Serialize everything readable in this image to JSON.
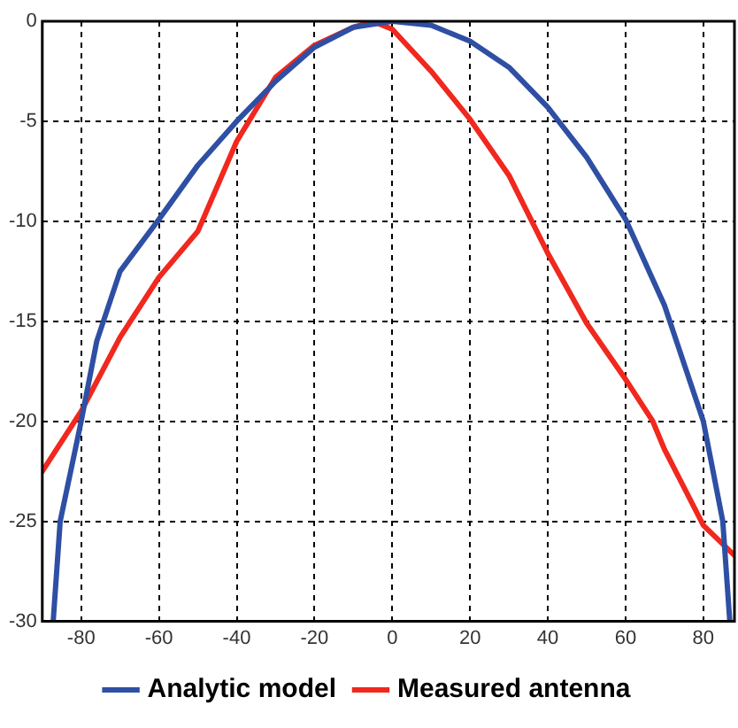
{
  "chart_data": {
    "type": "line",
    "xlim": [
      -90,
      88
    ],
    "ylim": [
      -30,
      0
    ],
    "xticks": [
      -80,
      -60,
      -40,
      -20,
      0,
      20,
      40,
      60,
      80
    ],
    "yticks": [
      -30,
      -25,
      -20,
      -15,
      -10,
      -5,
      0
    ],
    "grid": true,
    "legend": "bottom",
    "marker": "none",
    "line_style": "solid",
    "series": [
      {
        "name": "Analytic model",
        "color": "#2e4fa3",
        "x": [
          -87.2,
          -85.4,
          -80,
          -76,
          -70,
          -60,
          -50,
          -40,
          -30,
          -20,
          -10,
          0,
          10,
          20,
          30,
          40,
          50,
          60,
          70,
          80,
          85,
          86.8
        ],
        "values": [
          -30,
          -25,
          -20,
          -16,
          -12.5,
          -9.9,
          -7.2,
          -5,
          -3,
          -1.3,
          -0.3,
          0,
          -0.2,
          -1,
          -2.3,
          -4.3,
          -6.8,
          -9.9,
          -14.2,
          -20,
          -25,
          -30
        ]
      },
      {
        "name": "Measured antenna",
        "color": "#f0281e",
        "x": [
          -90,
          -80,
          -70,
          -60,
          -50,
          -40,
          -30,
          -20,
          -10,
          -5,
          0,
          10,
          20,
          30,
          40,
          50,
          60,
          67,
          70,
          80,
          88
        ],
        "values": [
          -22.5,
          -19.5,
          -15.8,
          -12.8,
          -10.5,
          -6,
          -2.8,
          -1.2,
          -0.3,
          0,
          -0.4,
          -2.5,
          -4.9,
          -7.7,
          -11.6,
          -15.1,
          -17.9,
          -20,
          -21.4,
          -25.2,
          -26.7
        ]
      }
    ]
  }
}
